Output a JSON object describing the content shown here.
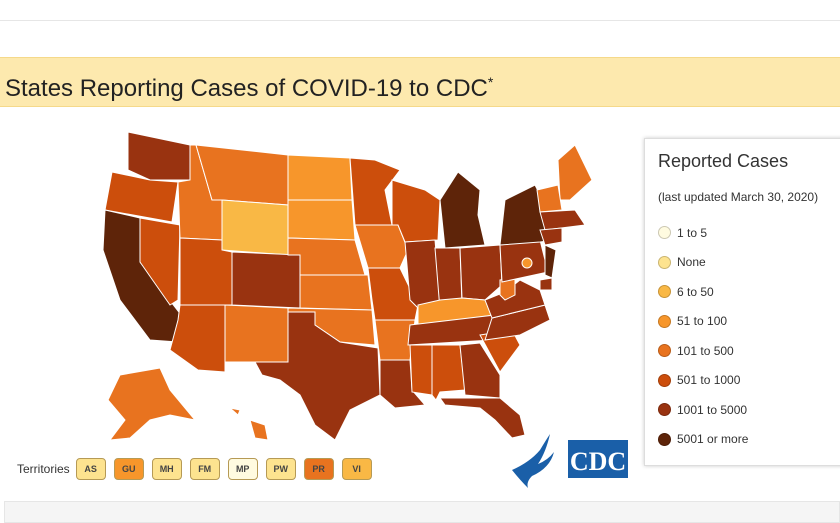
{
  "title": "States Reporting Cases of COVID-19 to CDC",
  "title_mark": "*",
  "legend": {
    "title": "Reported Cases",
    "updated": "(last updated March 30, 2020)",
    "items": [
      {
        "label": "1 to 5",
        "color": "#fffbe0"
      },
      {
        "label": "None",
        "color": "#fde38f"
      },
      {
        "label": "6 to 50",
        "color": "#f9b845"
      },
      {
        "label": "51 to 100",
        "color": "#f7962b"
      },
      {
        "label": "101 to 500",
        "color": "#e8731f"
      },
      {
        "label": "501 to 1000",
        "color": "#cc4e0c"
      },
      {
        "label": "1001 to 5000",
        "color": "#993310"
      },
      {
        "label": "5001 or more",
        "color": "#5e2409"
      }
    ]
  },
  "territories": {
    "label": "Territories",
    "items": [
      {
        "code": "AS",
        "color": "#fde38f"
      },
      {
        "code": "GU",
        "color": "#f7962b"
      },
      {
        "code": "MH",
        "color": "#fde38f"
      },
      {
        "code": "FM",
        "color": "#fde38f"
      },
      {
        "code": "MP",
        "color": "#fffbe0"
      },
      {
        "code": "PW",
        "color": "#fde38f"
      },
      {
        "code": "PR",
        "color": "#e8731f"
      },
      {
        "code": "VI",
        "color": "#f9b845"
      }
    ]
  },
  "logo": "CDC"
}
